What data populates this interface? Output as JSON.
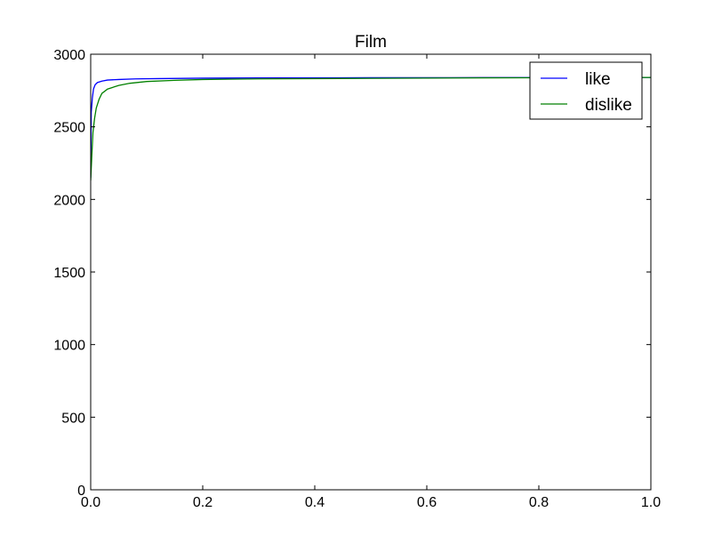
{
  "chart_data": {
    "type": "line",
    "title": "Film",
    "xlabel": "",
    "ylabel": "",
    "xlim": [
      0.0,
      1.0
    ],
    "ylim": [
      0,
      3000
    ],
    "x_ticks": [
      "0.0",
      "0.2",
      "0.4",
      "0.6",
      "0.8",
      "1.0"
    ],
    "y_ticks": [
      "0",
      "500",
      "1000",
      "1500",
      "2000",
      "2500",
      "3000"
    ],
    "legend_position": "top-right",
    "grid": false,
    "series": [
      {
        "name": "like",
        "color": "#0000ff",
        "x": [
          0.0,
          0.001,
          0.003,
          0.005,
          0.008,
          0.012,
          0.02,
          0.03,
          0.05,
          0.08,
          0.12,
          0.2,
          0.3,
          0.5,
          0.7,
          1.0
        ],
        "y": [
          2150,
          2600,
          2700,
          2760,
          2790,
          2805,
          2815,
          2822,
          2826,
          2830,
          2832,
          2835,
          2837,
          2838,
          2839,
          2840
        ]
      },
      {
        "name": "dislike",
        "color": "#008000",
        "x": [
          0.0,
          0.002,
          0.004,
          0.007,
          0.01,
          0.015,
          0.02,
          0.03,
          0.05,
          0.07,
          0.1,
          0.15,
          0.2,
          0.3,
          0.5,
          0.7,
          1.0
        ],
        "y": [
          2130,
          2300,
          2460,
          2560,
          2630,
          2690,
          2730,
          2760,
          2785,
          2800,
          2812,
          2820,
          2826,
          2830,
          2834,
          2837,
          2840
        ]
      }
    ]
  }
}
